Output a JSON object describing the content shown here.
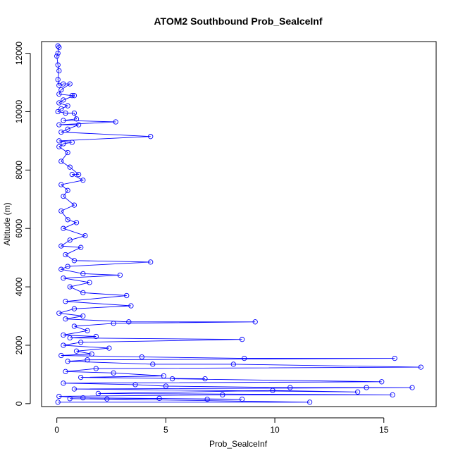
{
  "chart_data": {
    "type": "line",
    "title": "ATOM2 Southbound Prob_SealceInf",
    "xlabel": "Prob_SealceInf",
    "ylabel": "Altitude (m)",
    "xlim": [
      -0.7,
      17.4
    ],
    "ylim": [
      -100,
      12400
    ],
    "x_ticks": [
      0,
      5,
      10,
      15
    ],
    "y_ticks": [
      0,
      2000,
      4000,
      6000,
      8000,
      10000,
      12000
    ],
    "grid": false,
    "legend": "none",
    "marker": "open-circle",
    "color": "#0000ff",
    "series": [
      {
        "values": [
          [
            0.05,
            12250
          ],
          [
            0.1,
            12200
          ],
          [
            0.05,
            12000
          ],
          [
            0.0,
            11900
          ],
          [
            0.05,
            11600
          ],
          [
            0.1,
            11400
          ],
          [
            0.05,
            11100
          ],
          [
            0.1,
            10900
          ],
          [
            0.3,
            10950
          ],
          [
            0.6,
            10950
          ],
          [
            0.2,
            10750
          ],
          [
            0.1,
            10600
          ],
          [
            0.7,
            10550
          ],
          [
            0.8,
            10550
          ],
          [
            0.3,
            10400
          ],
          [
            0.1,
            10300
          ],
          [
            0.5,
            10200
          ],
          [
            0.2,
            10100
          ],
          [
            0.05,
            10000
          ],
          [
            0.4,
            9950
          ],
          [
            0.8,
            9950
          ],
          [
            0.9,
            9750
          ],
          [
            0.3,
            9700
          ],
          [
            2.7,
            9650
          ],
          [
            0.1,
            9550
          ],
          [
            1.0,
            9550
          ],
          [
            0.5,
            9400
          ],
          [
            0.2,
            9300
          ],
          [
            4.3,
            9150
          ],
          [
            0.1,
            9000
          ],
          [
            0.7,
            8950
          ],
          [
            0.3,
            8900
          ],
          [
            0.1,
            8800
          ],
          [
            0.5,
            8600
          ],
          [
            0.2,
            8300
          ],
          [
            0.6,
            8100
          ],
          [
            1.0,
            7850
          ],
          [
            0.7,
            7850
          ],
          [
            1.2,
            7650
          ],
          [
            0.2,
            7500
          ],
          [
            0.5,
            7300
          ],
          [
            0.3,
            7100
          ],
          [
            0.8,
            6800
          ],
          [
            0.2,
            6600
          ],
          [
            0.5,
            6300
          ],
          [
            0.9,
            6200
          ],
          [
            0.3,
            6000
          ],
          [
            1.3,
            5750
          ],
          [
            0.6,
            5600
          ],
          [
            0.2,
            5400
          ],
          [
            1.1,
            5350
          ],
          [
            0.4,
            5100
          ],
          [
            0.8,
            4900
          ],
          [
            4.3,
            4850
          ],
          [
            0.5,
            4700
          ],
          [
            0.2,
            4600
          ],
          [
            1.2,
            4450
          ],
          [
            2.9,
            4400
          ],
          [
            0.3,
            4300
          ],
          [
            1.5,
            4150
          ],
          [
            0.6,
            4000
          ],
          [
            1.2,
            3800
          ],
          [
            3.2,
            3700
          ],
          [
            0.4,
            3500
          ],
          [
            3.4,
            3350
          ],
          [
            0.8,
            3250
          ],
          [
            0.1,
            3100
          ],
          [
            1.2,
            3000
          ],
          [
            0.4,
            2900
          ],
          [
            3.3,
            2800
          ],
          [
            9.1,
            2800
          ],
          [
            2.6,
            2750
          ],
          [
            0.8,
            2650
          ],
          [
            1.4,
            2500
          ],
          [
            0.3,
            2350
          ],
          [
            1.8,
            2300
          ],
          [
            0.6,
            2250
          ],
          [
            8.5,
            2200
          ],
          [
            1.1,
            2100
          ],
          [
            0.3,
            2000
          ],
          [
            2.4,
            1900
          ],
          [
            0.9,
            1800
          ],
          [
            1.6,
            1700
          ],
          [
            0.2,
            1650
          ],
          [
            3.9,
            1600
          ],
          [
            8.6,
            1550
          ],
          [
            15.5,
            1550
          ],
          [
            1.4,
            1500
          ],
          [
            0.5,
            1450
          ],
          [
            4.4,
            1350
          ],
          [
            8.1,
            1350
          ],
          [
            16.7,
            1250
          ],
          [
            1.8,
            1200
          ],
          [
            0.4,
            1100
          ],
          [
            2.6,
            1050
          ],
          [
            4.9,
            950
          ],
          [
            1.1,
            900
          ],
          [
            6.8,
            850
          ],
          [
            5.3,
            850
          ],
          [
            14.9,
            750
          ],
          [
            0.3,
            700
          ],
          [
            3.6,
            650
          ],
          [
            5.0,
            600
          ],
          [
            10.7,
            550
          ],
          [
            14.2,
            550
          ],
          [
            16.3,
            550
          ],
          [
            0.8,
            500
          ],
          [
            13.8,
            400
          ],
          [
            9.9,
            450
          ],
          [
            1.9,
            350
          ],
          [
            15.4,
            300
          ],
          [
            7.6,
            300
          ],
          [
            0.1,
            250
          ],
          [
            1.2,
            200
          ],
          [
            8.5,
            150
          ],
          [
            6.9,
            150
          ],
          [
            4.7,
            180
          ],
          [
            2.3,
            160
          ],
          [
            0.6,
            170
          ],
          [
            11.6,
            50
          ],
          [
            0.05,
            50
          ]
        ]
      }
    ]
  }
}
